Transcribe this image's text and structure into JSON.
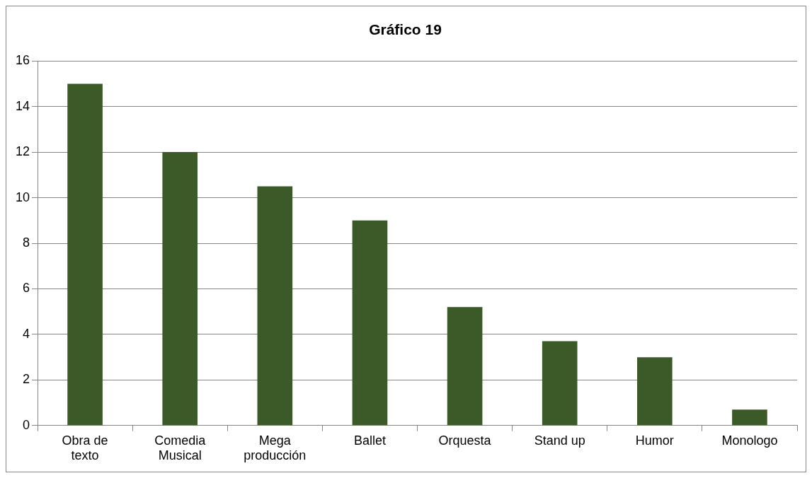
{
  "chart_data": {
    "type": "bar",
    "title": "Gráfico 19",
    "categories": [
      "Obra de texto",
      "Comedia Musical",
      "Mega producción",
      "Ballet",
      "Orquesta",
      "Stand up",
      "Humor",
      "Monologo"
    ],
    "values": [
      15,
      12,
      10.5,
      9,
      5.2,
      3.7,
      3,
      0.7
    ],
    "color": "#3b5a27",
    "ylim": [
      0,
      16
    ],
    "yticks": [
      0,
      2,
      4,
      6,
      8,
      10,
      12,
      14,
      16
    ],
    "grid": "y",
    "legend": false
  }
}
